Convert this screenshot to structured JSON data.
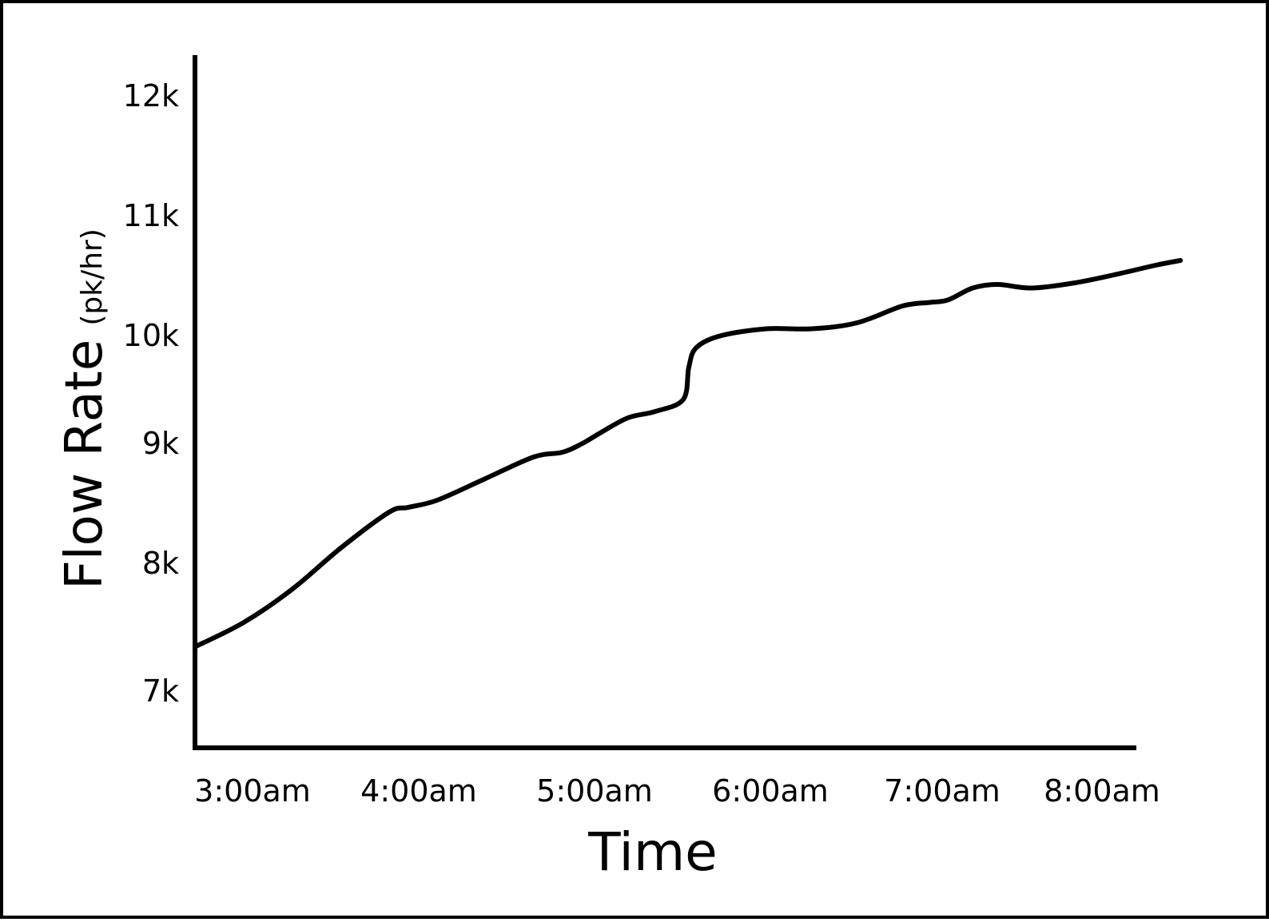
{
  "chart_data": {
    "type": "line",
    "xlabel": "Time",
    "ylabel": "Flow Rate",
    "ylabel_unit": "(pk/hr)",
    "x_ticks": [
      "3:00am",
      "4:00am",
      "5:00am",
      "6:00am",
      "7:00am",
      "8:00am"
    ],
    "y_ticks": [
      "7k",
      "8k",
      "9k",
      "10k",
      "11k",
      "12k"
    ],
    "y_tick_values": [
      7000,
      8000,
      9000,
      10000,
      11000,
      12000
    ],
    "ylim": [
      6500,
      12300
    ],
    "xlim_hours": [
      3.0,
      8.45
    ],
    "grid": false,
    "line_color": "#000000",
    "series": [
      {
        "x_hours": [
          3.0,
          3.25,
          3.5,
          3.75,
          4.0,
          4.1,
          4.25,
          4.5,
          4.75,
          4.9,
          5.0,
          5.1,
          5.25,
          5.4,
          5.55,
          5.58,
          5.62,
          5.75,
          6.0,
          6.25,
          6.5,
          6.75,
          6.9,
          7.0,
          7.15,
          7.3,
          7.5,
          7.75,
          8.0,
          8.25,
          8.4
        ],
        "values": [
          7340,
          7530,
          7790,
          8120,
          8420,
          8460,
          8520,
          8700,
          8880,
          8920,
          8990,
          9090,
          9230,
          9290,
          9400,
          9700,
          9880,
          9990,
          10050,
          10050,
          10100,
          10240,
          10270,
          10290,
          10390,
          10420,
          10390,
          10430,
          10500,
          10580,
          10620
        ]
      }
    ]
  }
}
